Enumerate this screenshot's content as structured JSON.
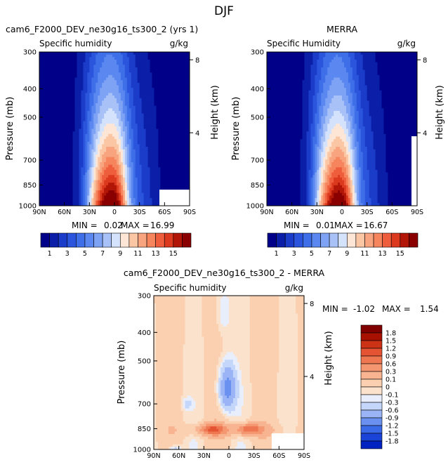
{
  "page": {
    "title": "DJF",
    "colors": {
      "moist": [
        "#000088",
        "#0a1ea8",
        "#1a3cc8",
        "#2a55dc",
        "#3e6ee8",
        "#5a88f0",
        "#7ea2f4",
        "#a8c2f8",
        "#d4e2fc",
        "#fde6d6",
        "#fbc6a4",
        "#f8a47e",
        "#f6845c",
        "#ef5e3c",
        "#dc3a1e",
        "#b21606",
        "#8a0000"
      ],
      "diff": [
        "#000088",
        "#0022c0",
        "#1a44d8",
        "#3a6ae8",
        "#6a90f0",
        "#9ab4f6",
        "#c4d6fa",
        "#e8eefc",
        "#fbe2cc",
        "#fbd0b0",
        "#f8b490",
        "#f49670",
        "#ee7650",
        "#e45432",
        "#cc3216",
        "#a81000",
        "#800000"
      ]
    }
  },
  "panels": [
    {
      "title": "cam6_F2000_DEV_ne30g16_ts300_2 (yrs 1)",
      "subtitle": "Specific humidity",
      "units": "g/kg",
      "min_label": "MIN = ",
      "min_value": "0.02",
      "max_label": "MAX = ",
      "max_value": "16.99",
      "colorbar_labels": [
        "1",
        "3",
        "5",
        "7",
        "9",
        "11",
        "13",
        "15"
      ]
    },
    {
      "title": "MERRA",
      "subtitle": "Specific Humidity",
      "units": "g/kg",
      "min_label": "MIN = ",
      "min_value": "0.01",
      "max_label": "MAX = ",
      "max_value": "16.67",
      "colorbar_labels": [
        "1",
        "3",
        "5",
        "7",
        "9",
        "11",
        "13",
        "15"
      ]
    },
    {
      "title": "cam6_F2000_DEV_ne30g16_ts300_2 - MERRA",
      "subtitle": "Specific humidity",
      "units": "g/kg",
      "min_label": "MIN = ",
      "min_value": "-1.02",
      "max_label": "MAX = ",
      "max_value": "1.54",
      "colorbar_labels": [
        "1.8",
        "1.5",
        "1.2",
        "0.9",
        "0.6",
        "0.3",
        "0.1",
        "0",
        "-0.1",
        "-0.3",
        "-0.6",
        "-0.9",
        "-1.2",
        "-1.5",
        "-1.8"
      ]
    }
  ],
  "chart_data": [
    {
      "type": "heatmap",
      "title": "cam6_F2000_DEV_ne30g16_ts300_2 (yrs 1)",
      "subtitle": "Specific humidity",
      "units": "g/kg",
      "ylabel": "Pressure (mb)",
      "ylabel_right": "Height (km)",
      "x_ticks": [
        "90N",
        "60N",
        "30N",
        "0",
        "30S",
        "60S",
        "90S"
      ],
      "y_ticks": [
        "300",
        "400",
        "500",
        "700",
        "850",
        "1000"
      ],
      "y_right_ticks": [
        "8",
        "4"
      ],
      "xlim": [
        90,
        -90
      ],
      "ylim": [
        1000,
        300
      ],
      "levels": [
        1,
        2,
        3,
        4,
        5,
        6,
        7,
        8,
        9,
        10,
        11,
        12,
        13,
        14,
        15,
        16
      ],
      "min": 0.02,
      "max": 16.99
    },
    {
      "type": "heatmap",
      "title": "MERRA",
      "subtitle": "Specific Humidity",
      "units": "g/kg",
      "ylabel": "Pressure (mb)",
      "ylabel_right": "Height (km)",
      "x_ticks": [
        "90N",
        "60N",
        "30N",
        "0",
        "30S",
        "60S",
        "90S"
      ],
      "y_ticks": [
        "300",
        "400",
        "500",
        "700",
        "850",
        "1000"
      ],
      "y_right_ticks": [
        "8",
        "4"
      ],
      "xlim": [
        90,
        -90
      ],
      "ylim": [
        1000,
        300
      ],
      "levels": [
        1,
        2,
        3,
        4,
        5,
        6,
        7,
        8,
        9,
        10,
        11,
        12,
        13,
        14,
        15,
        16
      ],
      "min": 0.01,
      "max": 16.67
    },
    {
      "type": "heatmap",
      "title": "cam6_F2000_DEV_ne30g16_ts300_2 - MERRA",
      "subtitle": "Specific humidity",
      "units": "g/kg",
      "ylabel": "Pressure (mb)",
      "ylabel_right": "Height (km)",
      "x_ticks": [
        "90N",
        "60N",
        "30N",
        "0",
        "30S",
        "60S",
        "90S"
      ],
      "y_ticks": [
        "300",
        "400",
        "500",
        "700",
        "850",
        "1000"
      ],
      "y_right_ticks": [
        "8",
        "4"
      ],
      "xlim": [
        90,
        -90
      ],
      "ylim": [
        1000,
        300
      ],
      "levels": [
        -1.8,
        -1.5,
        -1.2,
        -0.9,
        -0.6,
        -0.3,
        -0.1,
        0,
        0.1,
        0.3,
        0.6,
        0.9,
        1.2,
        1.5,
        1.8
      ],
      "min": -1.02,
      "max": 1.54
    }
  ]
}
